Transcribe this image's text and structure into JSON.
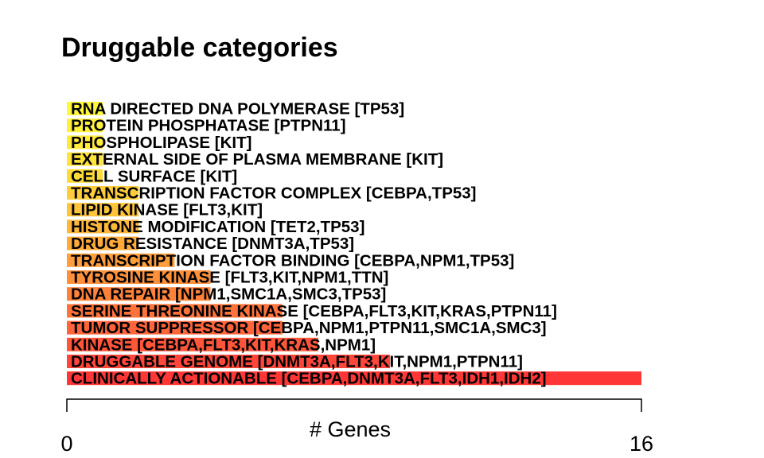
{
  "chart_data": {
    "type": "bar",
    "orientation": "horizontal",
    "title": "Druggable categories",
    "xlabel": "# Genes",
    "ylabel": "",
    "xlim": [
      0,
      16
    ],
    "x_ticks": [
      "0",
      "16"
    ],
    "grid": false,
    "categories": [
      "RNA DIRECTED DNA POLYMERASE [TP53]",
      "PROTEIN PHOSPHATASE [PTPN11]",
      "PHOSPHOLIPASE [KIT]",
      "EXTERNAL SIDE OF PLASMA MEMBRANE [KIT]",
      "CELL SURFACE [KIT]",
      "TRANSCRIPTION FACTOR COMPLEX [CEBPA,TP53]",
      "LIPID KINASE [FLT3,KIT]",
      "HISTONE MODIFICATION [TET2,TP53]",
      "DRUG RESISTANCE [DNMT3A,TP53]",
      "TRANSCRIPTION FACTOR BINDING [CEBPA,NPM1,TP53]",
      "TYROSINE KINASE [FLT3,KIT,NPM1,TTN]",
      "DNA REPAIR [NPM1,SMC1A,SMC3,TP53]",
      "SERINE THREONINE KINASE [CEBPA,FLT3,KIT,KRAS,PTPN11]",
      "TUMOR SUPPRESSOR [CEBPA,NPM1,PTPN11,SMC1A,SMC3]",
      "KINASE [CEBPA,FLT3,KIT,KRAS,NPM1]",
      "DRUGGABLE GENOME [DNMT3A,FLT3,KIT,NPM1,PTPN11]",
      "CLINICALLY ACTIONABLE [CEBPA,DNMT3A,FLT3,IDH1,IDH2]"
    ],
    "values": [
      1,
      1,
      1,
      1,
      1,
      2,
      2,
      2,
      2,
      3,
      4,
      4,
      6,
      6,
      7,
      9,
      16
    ],
    "colors": [
      "#fff73a",
      "#fff03a",
      "#ffe93a",
      "#ffe23a",
      "#ffdb3a",
      "#ffcd3a",
      "#ffc43a",
      "#ffb73a",
      "#ffab3a",
      "#ff9e3a",
      "#ff903a",
      "#ff823a",
      "#ff733a",
      "#ff643a",
      "#ff553a",
      "#ff463a",
      "#ff3636"
    ]
  }
}
